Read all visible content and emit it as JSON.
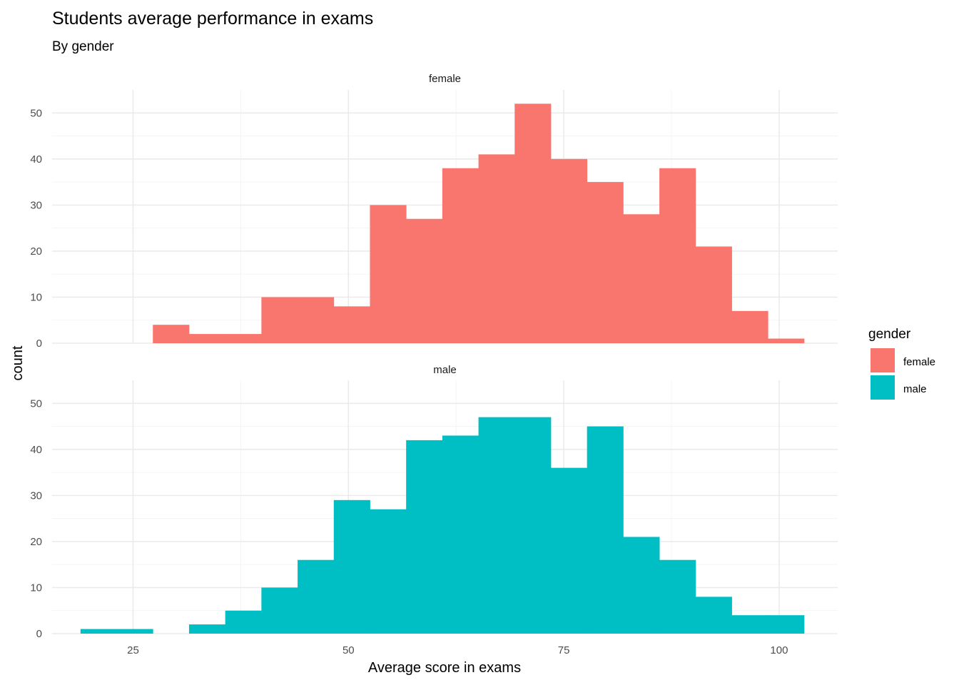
{
  "chart_data": {
    "type": "bar",
    "title": "Students average performance in exams",
    "subtitle": "By gender",
    "xlabel": "Average score in exams",
    "ylabel": "count",
    "xlim": [
      15.6,
      106.8
    ],
    "ylim": [
      0,
      55
    ],
    "x_ticks": [
      25,
      50,
      75,
      100
    ],
    "y_ticks": [
      0,
      10,
      20,
      30,
      40,
      50
    ],
    "bin_width": 4.2,
    "grid": true,
    "legend": {
      "title": "gender",
      "position": "right",
      "entries": [
        {
          "label": "female",
          "color": "#F8766D"
        },
        {
          "label": "male",
          "color": "#00BFC4"
        }
      ]
    },
    "facets": [
      {
        "name": "female",
        "color": "#F8766D",
        "bins": [
          {
            "x": 29.4,
            "count": 4
          },
          {
            "x": 33.6,
            "count": 2
          },
          {
            "x": 37.8,
            "count": 2
          },
          {
            "x": 42.0,
            "count": 10
          },
          {
            "x": 46.2,
            "count": 10
          },
          {
            "x": 50.4,
            "count": 8
          },
          {
            "x": 54.6,
            "count": 30
          },
          {
            "x": 58.8,
            "count": 27
          },
          {
            "x": 63.0,
            "count": 38
          },
          {
            "x": 67.2,
            "count": 41
          },
          {
            "x": 71.4,
            "count": 52
          },
          {
            "x": 75.6,
            "count": 40
          },
          {
            "x": 79.8,
            "count": 35
          },
          {
            "x": 84.0,
            "count": 28
          },
          {
            "x": 88.2,
            "count": 38
          },
          {
            "x": 92.4,
            "count": 21
          },
          {
            "x": 96.6,
            "count": 7
          },
          {
            "x": 100.8,
            "count": 1
          }
        ]
      },
      {
        "name": "male",
        "color": "#00BFC4",
        "bins": [
          {
            "x": 21.0,
            "count": 1
          },
          {
            "x": 25.2,
            "count": 1
          },
          {
            "x": 33.6,
            "count": 2
          },
          {
            "x": 37.8,
            "count": 5
          },
          {
            "x": 42.0,
            "count": 10
          },
          {
            "x": 46.2,
            "count": 16
          },
          {
            "x": 50.4,
            "count": 29
          },
          {
            "x": 54.6,
            "count": 27
          },
          {
            "x": 58.8,
            "count": 42
          },
          {
            "x": 63.0,
            "count": 43
          },
          {
            "x": 67.2,
            "count": 47
          },
          {
            "x": 71.4,
            "count": 47
          },
          {
            "x": 75.6,
            "count": 36
          },
          {
            "x": 79.8,
            "count": 45
          },
          {
            "x": 84.0,
            "count": 21
          },
          {
            "x": 88.2,
            "count": 16
          },
          {
            "x": 92.4,
            "count": 8
          },
          {
            "x": 96.6,
            "count": 4
          },
          {
            "x": 100.8,
            "count": 4
          }
        ]
      }
    ]
  }
}
